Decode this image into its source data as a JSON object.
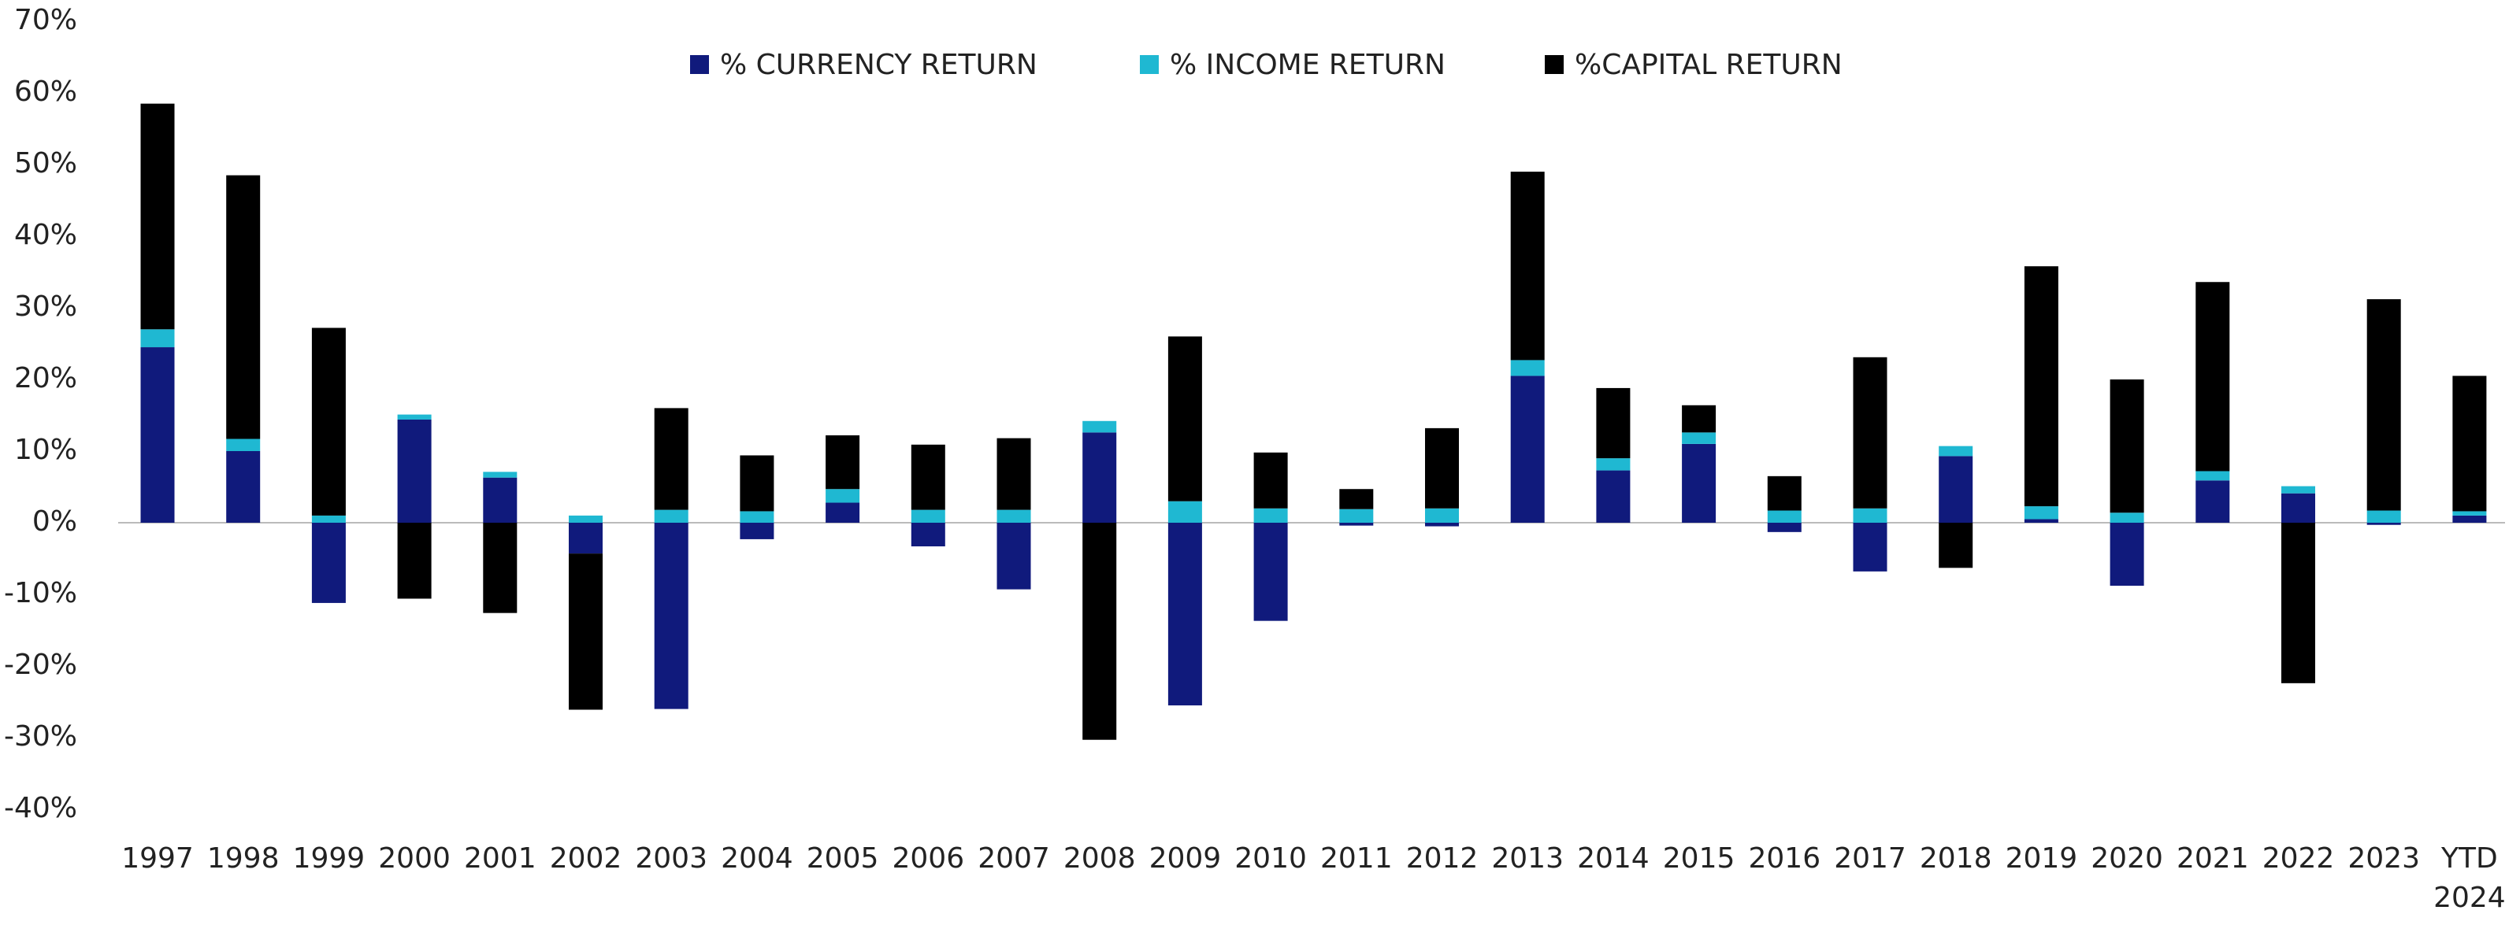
{
  "chart_data": {
    "type": "bar",
    "stacked": true,
    "legend": "top-center",
    "categories": [
      "1997",
      "1998",
      "1999",
      "2000",
      "2001",
      "2002",
      "2003",
      "2004",
      "2005",
      "2006",
      "2007",
      "2008",
      "2009",
      "2010",
      "2011",
      "2012",
      "2013",
      "2014",
      "2015",
      "2016",
      "2017",
      "2018",
      "2019",
      "2020",
      "2021",
      "2022",
      "2023",
      "YTD 2024"
    ],
    "series": [
      {
        "name": "% CURRENCY RETURN",
        "color": "#101a7c",
        "values": [
          24.5,
          10,
          -11.2,
          14.4,
          6.3,
          -4.3,
          -26,
          -2.3,
          2.8,
          -3.3,
          -9.3,
          12.6,
          -25.5,
          -13.7,
          -0.4,
          -0.5,
          20.5,
          7.3,
          11,
          -1.3,
          -6.8,
          9.3,
          0.5,
          -8.8,
          5.9,
          4.1,
          -0.3,
          1
        ]
      },
      {
        "name": "% INCOME RETURN",
        "color": "#1fb8d2",
        "values": [
          2.5,
          1.7,
          1,
          0.7,
          0.8,
          1,
          1.8,
          1.6,
          1.9,
          1.8,
          1.8,
          1.6,
          3,
          2,
          1.9,
          2,
          2.2,
          1.7,
          1.6,
          1.7,
          2,
          1.4,
          1.8,
          1.4,
          1.3,
          1,
          1.7,
          0.6
        ]
      },
      {
        "name": "%CAPITAL RETURN",
        "color": "#000000",
        "values": [
          31.5,
          36.8,
          26.2,
          -10.6,
          -12.6,
          -21.8,
          14.2,
          7.8,
          7.5,
          9.1,
          10,
          -30.3,
          23,
          7.8,
          2.8,
          11.2,
          26.3,
          9.8,
          3.8,
          4.8,
          21.1,
          -6.3,
          33.5,
          18.6,
          26.4,
          -22.4,
          29.5,
          18.9
        ]
      }
    ],
    "ylim": [
      -40,
      70
    ],
    "yticks": [
      {
        "value": -40,
        "label": "-40%"
      },
      {
        "value": -30,
        "label": "-30%"
      },
      {
        "value": -20,
        "label": "-20%"
      },
      {
        "value": -10,
        "label": "-10%"
      },
      {
        "value": 0,
        "label": "0%"
      },
      {
        "value": 10,
        "label": "10%"
      },
      {
        "value": 20,
        "label": "20%"
      },
      {
        "value": 30,
        "label": "30%"
      },
      {
        "value": 40,
        "label": "40%"
      },
      {
        "value": 50,
        "label": "50%"
      },
      {
        "value": 60,
        "label": "60%"
      },
      {
        "value": 70,
        "label": "70%"
      }
    ],
    "grid": false
  }
}
